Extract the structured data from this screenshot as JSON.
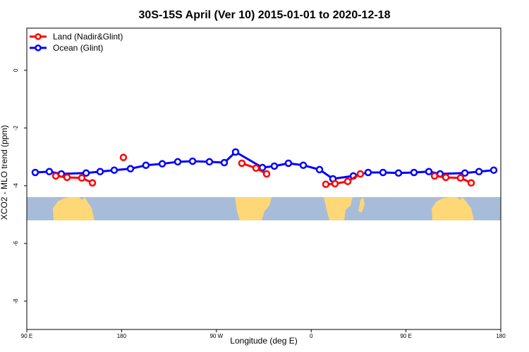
{
  "chart_data": {
    "type": "line",
    "title": "30S-15S April (Ver 10)   2015-01-01 to 2020-12-18",
    "xlabel": "Longitude (deg E)",
    "ylabel": "XCO2 - MLO trend (ppm)",
    "xlim": [
      90,
      540
    ],
    "ylim": [
      -8.98,
      1.46
    ],
    "xticks": [
      90,
      180,
      270,
      360,
      450,
      540
    ],
    "xtick_labels": [
      "90 E",
      "180",
      "90 W",
      "0",
      "90 E",
      "180"
    ],
    "yticks": [
      0,
      -2,
      -4,
      -6,
      -8
    ],
    "ytick_labels": [
      "0",
      "-2",
      "-4",
      "-6",
      "-8"
    ],
    "grid": false,
    "legend_position": "top-left",
    "series": [
      {
        "name": "Land (Nadir&Glint)",
        "color": "#ff0000",
        "segments": [
          [
            [
              117.5,
              -3.66
            ],
            [
              128.2,
              -3.71
            ],
            [
              142.2,
              -3.73
            ],
            [
              152.3,
              -3.9
            ]
          ],
          [
            [
              181.7,
              -3.02
            ]
          ],
          [
            [
              294.2,
              -3.22
            ],
            [
              307.6,
              -3.39
            ],
            [
              317.7,
              -3.59
            ]
          ],
          [
            [
              373.9,
              -3.95
            ],
            [
              382.6,
              -3.93
            ],
            [
              394.7,
              -3.85
            ],
            [
              406.7,
              -3.59
            ]
          ],
          [
            [
              477.1,
              -3.66
            ],
            [
              487.8,
              -3.71
            ],
            [
              501.8,
              -3.73
            ],
            [
              511.9,
              -3.9
            ]
          ]
        ]
      },
      {
        "name": "Ocean (Glint)",
        "color": "#0000ff",
        "segments": [
          [
            [
              98,
              -3.54
            ],
            [
              111.4,
              -3.51
            ],
            [
              122.8,
              -3.59
            ],
            [
              146.3,
              -3.56
            ],
            [
              159.6,
              -3.51
            ],
            [
              173,
              -3.46
            ],
            [
              188.4,
              -3.41
            ],
            [
              203.1,
              -3.29
            ],
            [
              218.6,
              -3.24
            ],
            [
              233.3,
              -3.17
            ],
            [
              247.4,
              -3.15
            ],
            [
              263.4,
              -3.17
            ],
            [
              277.5,
              -3.2
            ],
            [
              288.2,
              -2.83
            ],
            [
              313.7,
              -3.37
            ],
            [
              325,
              -3.32
            ],
            [
              338.4,
              -3.22
            ],
            [
              352.5,
              -3.29
            ],
            [
              367.9,
              -3.44
            ],
            [
              380.6,
              -3.76
            ],
            [
              400,
              -3.66
            ],
            [
              414.1,
              -3.54
            ],
            [
              428.2,
              -3.54
            ],
            [
              442.9,
              -3.56
            ],
            [
              457.6,
              -3.54
            ],
            [
              471.7,
              -3.51
            ],
            [
              482.4,
              -3.59
            ],
            [
              505.9,
              -3.56
            ],
            [
              519.3,
              -3.51
            ],
            [
              533.3,
              -3.46
            ]
          ]
        ]
      }
    ],
    "map_strip": {
      "ocean_color": "#a7bcd9",
      "land_color": "#fed776"
    }
  }
}
